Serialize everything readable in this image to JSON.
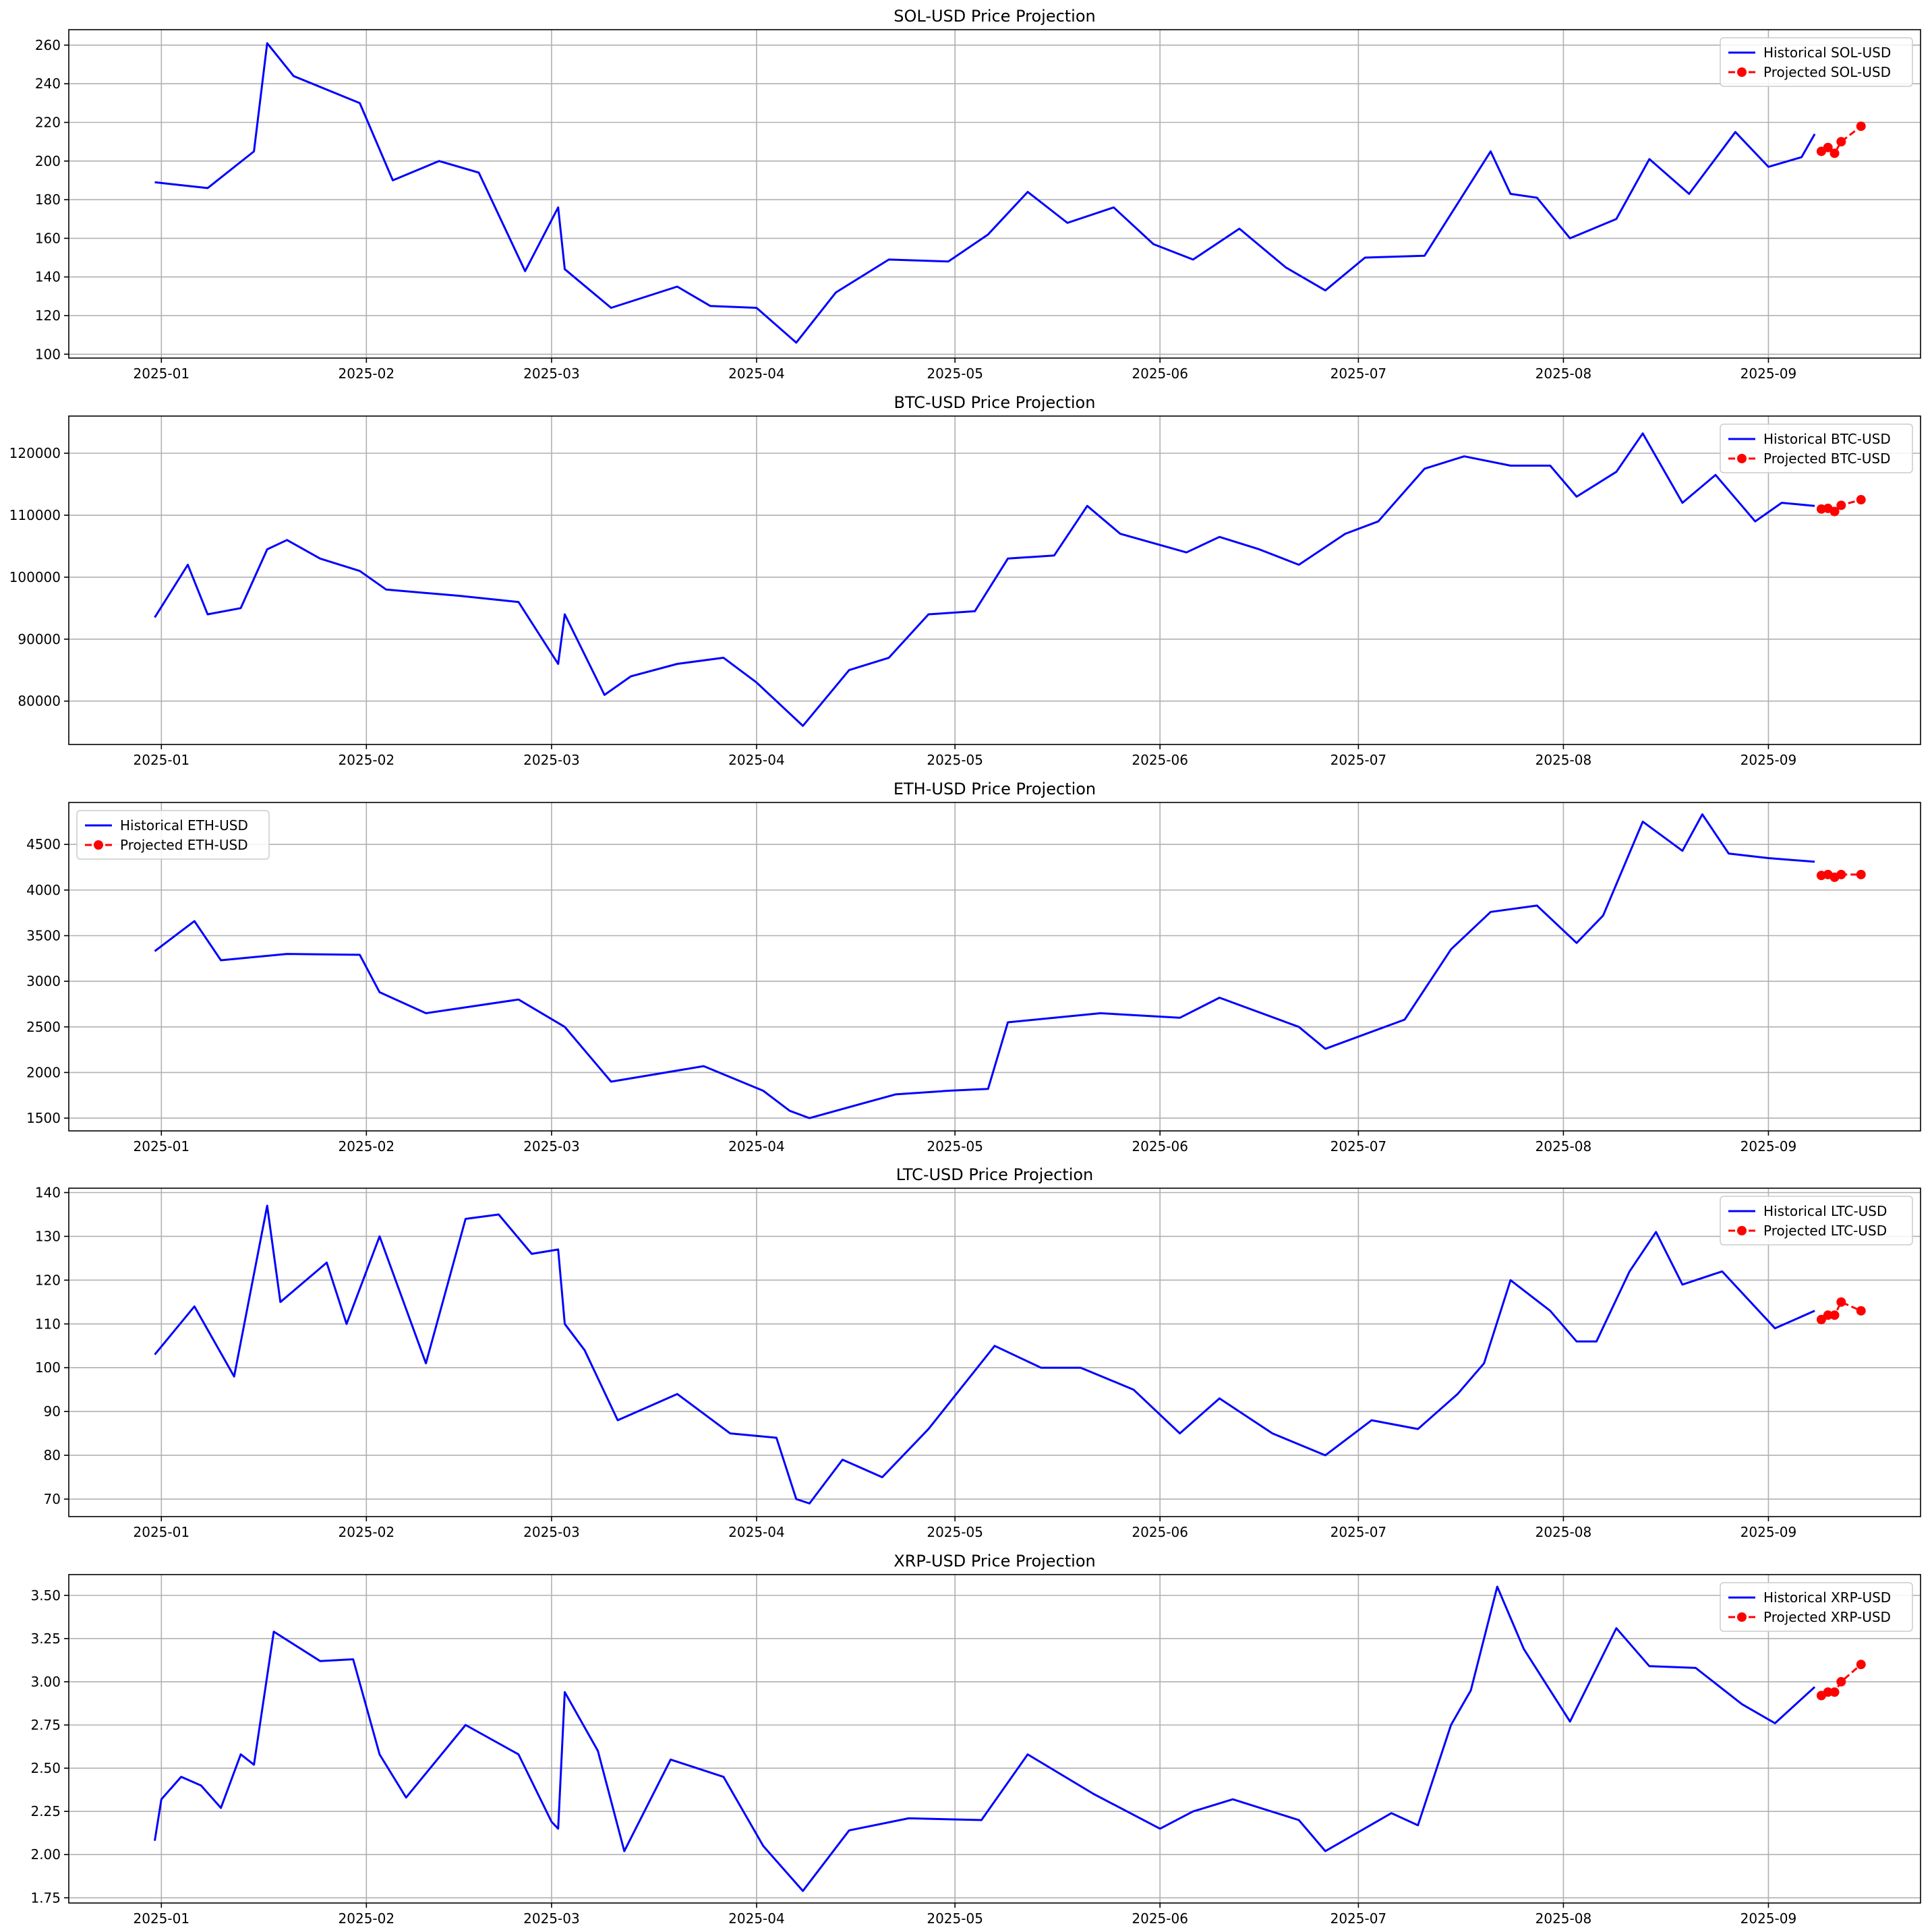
{
  "chart_data": [
    {
      "type": "line",
      "title": "SOL-USD Price Projection",
      "xlabel": "",
      "ylabel": "",
      "x_tick_labels": [
        "2025-01",
        "2025-02",
        "2025-03",
        "2025-04",
        "2025-05",
        "2025-06",
        "2025-07",
        "2025-08",
        "2025-09"
      ],
      "xlim": [
        "2024-12-18",
        "2025-09-24"
      ],
      "ylim": [
        98,
        268
      ],
      "yticks": [
        100,
        120,
        140,
        160,
        180,
        200,
        220,
        240,
        260
      ],
      "grid": true,
      "legend_position": "upper right",
      "series": [
        {
          "name": "Historical SOL-USD",
          "color": "#0000ff",
          "style": "solid",
          "dates": [
            "2024-12-31",
            "2025-01-08",
            "2025-01-15",
            "2025-01-17",
            "2025-01-21",
            "2025-01-31",
            "2025-02-05",
            "2025-02-12",
            "2025-02-18",
            "2025-02-25",
            "2025-03-02",
            "2025-03-03",
            "2025-03-10",
            "2025-03-20",
            "2025-03-25",
            "2025-04-01",
            "2025-04-07",
            "2025-04-13",
            "2025-04-21",
            "2025-04-30",
            "2025-05-06",
            "2025-05-12",
            "2025-05-18",
            "2025-05-25",
            "2025-05-31",
            "2025-06-06",
            "2025-06-13",
            "2025-06-20",
            "2025-06-26",
            "2025-07-02",
            "2025-07-11",
            "2025-07-21",
            "2025-07-24",
            "2025-07-28",
            "2025-08-02",
            "2025-08-09",
            "2025-08-14",
            "2025-08-20",
            "2025-08-27",
            "2025-09-01",
            "2025-09-06",
            "2025-09-08"
          ],
          "values": [
            189,
            186,
            205,
            261,
            244,
            230,
            190,
            200,
            194,
            143,
            176,
            144,
            124,
            135,
            125,
            124,
            106,
            132,
            149,
            148,
            162,
            184,
            168,
            176,
            157,
            149,
            165,
            145,
            133,
            150,
            151,
            205,
            183,
            181,
            160,
            170,
            201,
            183,
            215,
            197,
            202,
            214
          ]
        },
        {
          "name": "Projected SOL-USD",
          "color": "#ff0000",
          "style": "dashed",
          "marker": "circle",
          "dates": [
            "2025-09-09",
            "2025-09-10",
            "2025-09-11",
            "2025-09-12",
            "2025-09-15"
          ],
          "values": [
            205,
            207,
            204,
            210,
            218
          ]
        }
      ]
    },
    {
      "type": "line",
      "title": "BTC-USD Price Projection",
      "xlabel": "",
      "ylabel": "",
      "x_tick_labels": [
        "2025-01",
        "2025-02",
        "2025-03",
        "2025-04",
        "2025-05",
        "2025-06",
        "2025-07",
        "2025-08",
        "2025-09"
      ],
      "xlim": [
        "2024-12-18",
        "2025-09-24"
      ],
      "ylim": [
        73000,
        126000
      ],
      "yticks": [
        80000,
        90000,
        100000,
        110000,
        120000
      ],
      "grid": true,
      "legend_position": "upper right",
      "series": [
        {
          "name": "Historical BTC-USD",
          "color": "#0000ff",
          "style": "solid",
          "dates": [
            "2024-12-31",
            "2025-01-05",
            "2025-01-08",
            "2025-01-13",
            "2025-01-17",
            "2025-01-20",
            "2025-01-25",
            "2025-01-31",
            "2025-02-04",
            "2025-02-15",
            "2025-02-24",
            "2025-03-02",
            "2025-03-03",
            "2025-03-09",
            "2025-03-13",
            "2025-03-20",
            "2025-03-27",
            "2025-04-01",
            "2025-04-08",
            "2025-04-15",
            "2025-04-21",
            "2025-04-27",
            "2025-05-04",
            "2025-05-09",
            "2025-05-16",
            "2025-05-21",
            "2025-05-26",
            "2025-06-05",
            "2025-06-10",
            "2025-06-16",
            "2025-06-22",
            "2025-06-29",
            "2025-07-04",
            "2025-07-11",
            "2025-07-17",
            "2025-07-24",
            "2025-07-30",
            "2025-08-03",
            "2025-08-09",
            "2025-08-13",
            "2025-08-19",
            "2025-08-24",
            "2025-08-30",
            "2025-09-03",
            "2025-09-08"
          ],
          "values": [
            93500,
            102000,
            94000,
            95000,
            104500,
            106000,
            103000,
            101000,
            98000,
            97000,
            96000,
            86000,
            94000,
            81000,
            84000,
            86000,
            87000,
            83000,
            76000,
            85000,
            87000,
            94000,
            94500,
            103000,
            103500,
            111500,
            107000,
            104000,
            106500,
            104500,
            102000,
            107000,
            109000,
            117500,
            119500,
            118000,
            118000,
            113000,
            117000,
            123200,
            112000,
            116500,
            109000,
            112000,
            111500
          ]
        },
        {
          "name": "Projected BTC-USD",
          "color": "#ff0000",
          "style": "dashed",
          "marker": "circle",
          "dates": [
            "2025-09-09",
            "2025-09-10",
            "2025-09-11",
            "2025-09-12",
            "2025-09-15"
          ],
          "values": [
            111000,
            111100,
            110600,
            111600,
            112500
          ]
        }
      ]
    },
    {
      "type": "line",
      "title": "ETH-USD Price Projection",
      "xlabel": "",
      "ylabel": "",
      "x_tick_labels": [
        "2025-01",
        "2025-02",
        "2025-03",
        "2025-04",
        "2025-05",
        "2025-06",
        "2025-07",
        "2025-08",
        "2025-09"
      ],
      "xlim": [
        "2024-12-18",
        "2025-09-24"
      ],
      "ylim": [
        1360,
        4960
      ],
      "yticks": [
        1500,
        2000,
        2500,
        3000,
        3500,
        4000,
        4500
      ],
      "grid": true,
      "legend_position": "upper left",
      "series": [
        {
          "name": "Historical ETH-USD",
          "color": "#0000ff",
          "style": "solid",
          "dates": [
            "2024-12-31",
            "2025-01-06",
            "2025-01-10",
            "2025-01-20",
            "2025-01-31",
            "2025-02-03",
            "2025-02-10",
            "2025-02-24",
            "2025-03-03",
            "2025-03-10",
            "2025-03-24",
            "2025-04-02",
            "2025-04-06",
            "2025-04-09",
            "2025-04-15",
            "2025-04-22",
            "2025-04-30",
            "2025-05-06",
            "2025-05-09",
            "2025-05-23",
            "2025-06-04",
            "2025-06-10",
            "2025-06-22",
            "2025-06-26",
            "2025-07-08",
            "2025-07-15",
            "2025-07-21",
            "2025-07-28",
            "2025-08-03",
            "2025-08-07",
            "2025-08-13",
            "2025-08-19",
            "2025-08-22",
            "2025-08-26",
            "2025-09-01",
            "2025-09-08"
          ],
          "values": [
            3330,
            3660,
            3230,
            3300,
            3290,
            2880,
            2650,
            2800,
            2500,
            1900,
            2070,
            1800,
            1580,
            1500,
            1620,
            1760,
            1800,
            1820,
            2550,
            2650,
            2600,
            2820,
            2500,
            2260,
            2580,
            3350,
            3760,
            3830,
            3420,
            3720,
            4750,
            4430,
            4830,
            4400,
            4350,
            4310
          ]
        },
        {
          "name": "Projected ETH-USD",
          "color": "#ff0000",
          "style": "dashed",
          "marker": "circle",
          "dates": [
            "2025-09-09",
            "2025-09-10",
            "2025-09-11",
            "2025-09-12",
            "2025-09-15"
          ],
          "values": [
            4160,
            4170,
            4140,
            4170,
            4170
          ]
        }
      ]
    },
    {
      "type": "line",
      "title": "LTC-USD Price Projection",
      "xlabel": "",
      "ylabel": "",
      "x_tick_labels": [
        "2025-01",
        "2025-02",
        "2025-03",
        "2025-04",
        "2025-05",
        "2025-06",
        "2025-07",
        "2025-08",
        "2025-09"
      ],
      "xlim": [
        "2024-12-18",
        "2025-09-24"
      ],
      "ylim": [
        66,
        141
      ],
      "yticks": [
        70,
        80,
        90,
        100,
        110,
        120,
        130,
        140
      ],
      "grid": true,
      "legend_position": "upper right",
      "series": [
        {
          "name": "Historical LTC-USD",
          "color": "#0000ff",
          "style": "solid",
          "dates": [
            "2024-12-31",
            "2025-01-06",
            "2025-01-12",
            "2025-01-17",
            "2025-01-19",
            "2025-01-26",
            "2025-01-29",
            "2025-02-03",
            "2025-02-10",
            "2025-02-16",
            "2025-02-21",
            "2025-02-26",
            "2025-03-02",
            "2025-03-03",
            "2025-03-06",
            "2025-03-11",
            "2025-03-20",
            "2025-03-28",
            "2025-04-04",
            "2025-04-07",
            "2025-04-09",
            "2025-04-14",
            "2025-04-20",
            "2025-04-27",
            "2025-05-07",
            "2025-05-14",
            "2025-05-20",
            "2025-05-28",
            "2025-06-04",
            "2025-06-10",
            "2025-06-18",
            "2025-06-26",
            "2025-07-03",
            "2025-07-10",
            "2025-07-16",
            "2025-07-20",
            "2025-07-24",
            "2025-07-30",
            "2025-08-03",
            "2025-08-06",
            "2025-08-11",
            "2025-08-15",
            "2025-08-19",
            "2025-08-25",
            "2025-09-02",
            "2025-09-08"
          ],
          "values": [
            103,
            114,
            98,
            137,
            115,
            124,
            110,
            130,
            101,
            134,
            135,
            126,
            127,
            110,
            104,
            88,
            94,
            85,
            84,
            70,
            69,
            79,
            75,
            86,
            105,
            100,
            100,
            95,
            85,
            93,
            85,
            80,
            88,
            86,
            94,
            101,
            120,
            113,
            106,
            106,
            122,
            131,
            119,
            122,
            109,
            113
          ]
        },
        {
          "name": "Projected LTC-USD",
          "color": "#ff0000",
          "style": "dashed",
          "marker": "circle",
          "dates": [
            "2025-09-09",
            "2025-09-10",
            "2025-09-11",
            "2025-09-12",
            "2025-09-15"
          ],
          "values": [
            111,
            112,
            112,
            115,
            113
          ]
        }
      ]
    },
    {
      "type": "line",
      "title": "XRP-USD Price Projection",
      "xlabel": "",
      "ylabel": "",
      "x_tick_labels": [
        "2025-01",
        "2025-02",
        "2025-03",
        "2025-04",
        "2025-05",
        "2025-06",
        "2025-07",
        "2025-08",
        "2025-09"
      ],
      "xlim": [
        "2024-12-18",
        "2025-09-24"
      ],
      "ylim": [
        1.72,
        3.62
      ],
      "yticks": [
        1.75,
        2.0,
        2.25,
        2.5,
        2.75,
        3.0,
        3.25,
        3.5
      ],
      "grid": true,
      "legend_position": "upper right",
      "series": [
        {
          "name": "Historical XRP-USD",
          "color": "#0000ff",
          "style": "solid",
          "dates": [
            "2024-12-31",
            "2025-01-01",
            "2025-01-04",
            "2025-01-07",
            "2025-01-10",
            "2025-01-13",
            "2025-01-15",
            "2025-01-18",
            "2025-01-25",
            "2025-01-30",
            "2025-02-03",
            "2025-02-07",
            "2025-02-16",
            "2025-02-24",
            "2025-03-01",
            "2025-03-02",
            "2025-03-03",
            "2025-03-08",
            "2025-03-12",
            "2025-03-19",
            "2025-03-27",
            "2025-04-02",
            "2025-04-08",
            "2025-04-15",
            "2025-04-24",
            "2025-05-05",
            "2025-05-12",
            "2025-05-22",
            "2025-06-01",
            "2025-06-06",
            "2025-06-12",
            "2025-06-22",
            "2025-06-26",
            "2025-07-06",
            "2025-07-10",
            "2025-07-15",
            "2025-07-18",
            "2025-07-22",
            "2025-07-26",
            "2025-08-02",
            "2025-08-09",
            "2025-08-14",
            "2025-08-21",
            "2025-08-28",
            "2025-09-02",
            "2025-09-08"
          ],
          "values": [
            2.08,
            2.32,
            2.45,
            2.4,
            2.27,
            2.58,
            2.52,
            3.29,
            3.12,
            3.13,
            2.58,
            2.33,
            2.75,
            2.58,
            2.19,
            2.15,
            2.94,
            2.6,
            2.02,
            2.55,
            2.45,
            2.05,
            1.79,
            2.14,
            2.21,
            2.2,
            2.58,
            2.35,
            2.15,
            2.25,
            2.32,
            2.2,
            2.02,
            2.24,
            2.17,
            2.75,
            2.95,
            3.55,
            3.19,
            2.77,
            3.31,
            3.09,
            3.08,
            2.87,
            2.76,
            2.97
          ]
        },
        {
          "name": "Projected XRP-USD",
          "color": "#ff0000",
          "style": "dashed",
          "marker": "circle",
          "dates": [
            "2025-09-09",
            "2025-09-10",
            "2025-09-11",
            "2025-09-12",
            "2025-09-15"
          ],
          "values": [
            2.92,
            2.94,
            2.94,
            3.0,
            3.1
          ]
        }
      ]
    }
  ]
}
